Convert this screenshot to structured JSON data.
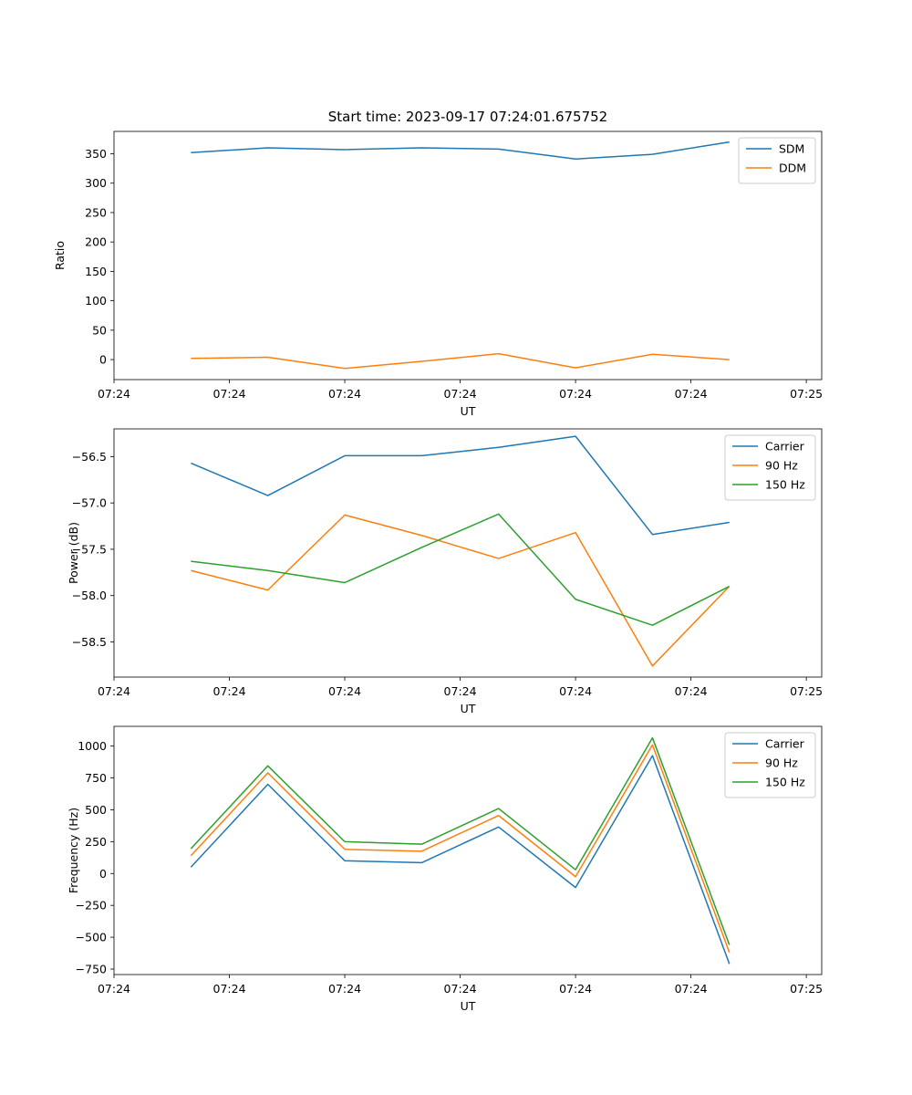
{
  "figure": {
    "title": "Start time: 2023-09-17 07:24:01.675752"
  },
  "chart_data": [
    {
      "type": "line",
      "xlabel": "UT",
      "ylabel": "Ratio",
      "x_tick_labels": [
        "07:24",
        "07:24",
        "07:24",
        "07:24",
        "07:24",
        "07:24",
        "07:25"
      ],
      "x": [
        1,
        2,
        3,
        4,
        5,
        6,
        7,
        8
      ],
      "xlim": [
        0,
        9.2
      ],
      "ylim": [
        -34,
        388
      ],
      "yticks": [
        0,
        50,
        100,
        150,
        200,
        250,
        300,
        350
      ],
      "series": [
        {
          "name": "SDM",
          "color": "#1f77b4",
          "values": [
            352,
            360,
            357,
            360,
            358,
            341,
            349,
            370
          ]
        },
        {
          "name": "DDM",
          "color": "#ff7f0e",
          "values": [
            2,
            4,
            -15,
            -3,
            10,
            -14,
            9,
            0
          ]
        }
      ],
      "legend": "top-right"
    },
    {
      "type": "line",
      "xlabel": "UT",
      "ylabel": "Power (dB)",
      "x_tick_labels": [
        "07:24",
        "07:24",
        "07:24",
        "07:24",
        "07:24",
        "07:24",
        "07:25"
      ],
      "x": [
        1,
        2,
        3,
        4,
        5,
        6,
        7,
        8
      ],
      "xlim": [
        0,
        9.2
      ],
      "ylim": [
        -58.88,
        -56.2
      ],
      "yticks": [
        -58.5,
        -58.0,
        -57.5,
        -57.0,
        -56.5
      ],
      "ytick_labels": [
        "−58.5",
        "−58.0",
        "−57.5",
        "−57.0",
        "−56.5"
      ],
      "series": [
        {
          "name": "Carrier",
          "color": "#1f77b4",
          "values": [
            -56.57,
            -56.92,
            -56.49,
            -56.49,
            -56.4,
            -56.28,
            -57.34,
            -57.21
          ]
        },
        {
          "name": "90 Hz",
          "color": "#ff7f0e",
          "values": [
            -57.73,
            -57.94,
            -57.13,
            -57.35,
            -57.6,
            -57.32,
            -58.76,
            -57.9
          ]
        },
        {
          "name": "150 Hz",
          "color": "#2ca02c",
          "values": [
            -57.63,
            -57.73,
            -57.86,
            -57.48,
            -57.12,
            -58.04,
            -58.32,
            -57.9
          ]
        }
      ],
      "legend": "top-right"
    },
    {
      "type": "line",
      "xlabel": "UT",
      "ylabel": "Frequency (Hz)",
      "x_tick_labels": [
        "07:24",
        "07:24",
        "07:24",
        "07:24",
        "07:24",
        "07:24",
        "07:25"
      ],
      "x": [
        1,
        2,
        3,
        4,
        5,
        6,
        7,
        8
      ],
      "xlim": [
        0,
        9.2
      ],
      "ylim": [
        -793,
        1155
      ],
      "yticks": [
        -750,
        -500,
        -250,
        0,
        250,
        500,
        750,
        1000
      ],
      "ytick_labels": [
        "−750",
        "−500",
        "−250",
        "0",
        "250",
        "500",
        "750",
        "1000"
      ],
      "series": [
        {
          "name": "Carrier",
          "color": "#1f77b4",
          "values": [
            50,
            700,
            100,
            85,
            365,
            -110,
            925,
            -710
          ]
        },
        {
          "name": "90 Hz",
          "color": "#ff7f0e",
          "values": [
            140,
            790,
            190,
            175,
            455,
            -25,
            1010,
            -620
          ]
        },
        {
          "name": "150 Hz",
          "color": "#2ca02c",
          "values": [
            195,
            845,
            250,
            230,
            510,
            30,
            1065,
            -560
          ]
        }
      ],
      "legend": "top-right"
    }
  ]
}
